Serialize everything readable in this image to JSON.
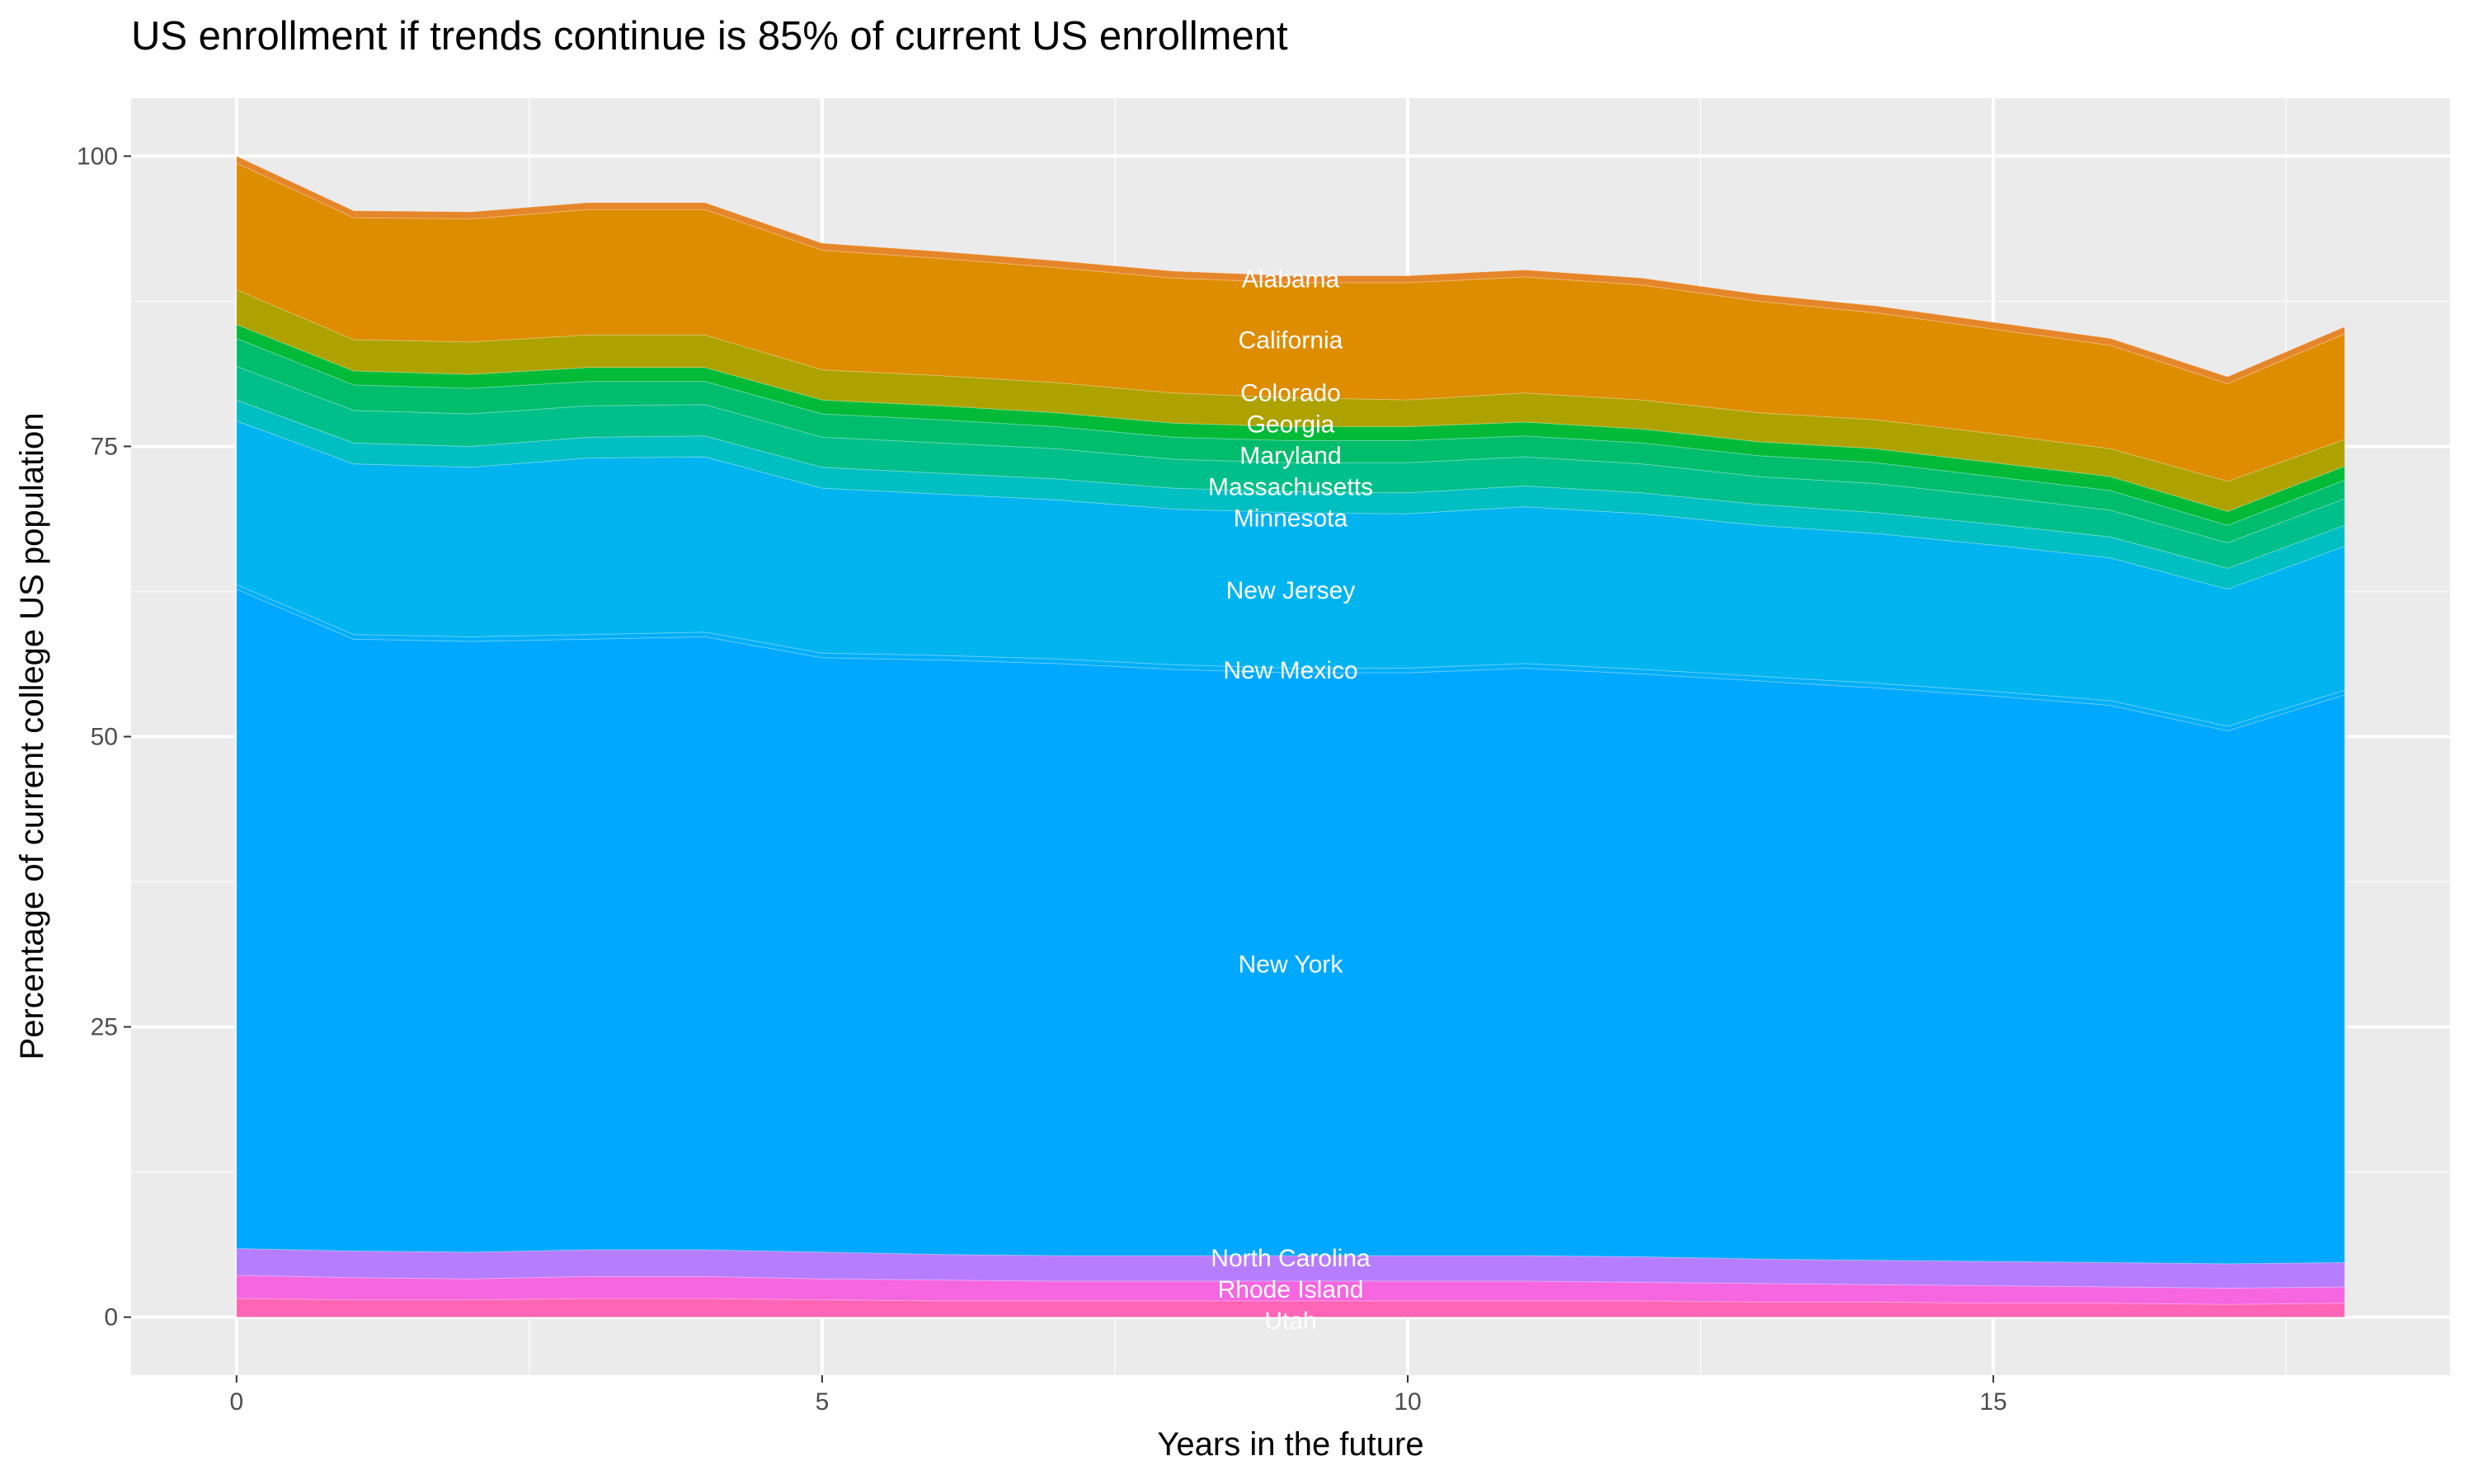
{
  "chart_data": {
    "type": "area",
    "stacked": true,
    "title": "US enrollment if trends continue is 85% of current US enrollment",
    "xlabel": "Years in the future",
    "ylabel": "Percentage of current college US population",
    "xlim": [
      -0.9,
      18.9
    ],
    "ylim": [
      -5,
      105
    ],
    "x_ticks": [
      0,
      5,
      10,
      15
    ],
    "y_ticks": [
      0,
      25,
      50,
      75,
      100
    ],
    "x_tick_labels": [
      "0",
      "5",
      "10",
      "15"
    ],
    "y_tick_labels": [
      "0",
      "25",
      "50",
      "75",
      "100"
    ],
    "grid": true,
    "legend": "none",
    "label_x": 9,
    "x": [
      0,
      1,
      2,
      3,
      4,
      5,
      6,
      7,
      8,
      9,
      10,
      11,
      12,
      13,
      14,
      15,
      16,
      17,
      18
    ],
    "series": [
      {
        "name": "Utah",
        "color": "#FF65B5",
        "values": [
          1.6,
          1.5,
          1.5,
          1.6,
          1.6,
          1.5,
          1.4,
          1.4,
          1.4,
          1.4,
          1.4,
          1.4,
          1.4,
          1.3,
          1.3,
          1.2,
          1.2,
          1.1,
          1.2
        ]
      },
      {
        "name": "Rhode Island",
        "color": "#F566E0",
        "values": [
          2.0,
          1.9,
          1.8,
          1.9,
          1.9,
          1.8,
          1.8,
          1.7,
          1.7,
          1.7,
          1.7,
          1.7,
          1.6,
          1.6,
          1.5,
          1.5,
          1.4,
          1.4,
          1.4
        ]
      },
      {
        "name": "North Carolina",
        "color": "#B67DFF",
        "values": [
          2.3,
          2.3,
          2.3,
          2.3,
          2.3,
          2.3,
          2.2,
          2.2,
          2.2,
          2.2,
          2.2,
          2.2,
          2.2,
          2.1,
          2.1,
          2.1,
          2.1,
          2.1,
          2.1
        ]
      },
      {
        "name": "New York",
        "color": "#00A9FF",
        "values": [
          56.8,
          52.7,
          52.6,
          52.6,
          52.8,
          51.2,
          51.2,
          51.0,
          50.5,
          50.2,
          50.2,
          50.6,
          50.2,
          49.8,
          49.3,
          48.7,
          48.0,
          45.9,
          48.9
        ]
      },
      {
        "name": "New Mexico",
        "color": "#00AEF8",
        "values": [
          0.4,
          0.4,
          0.4,
          0.4,
          0.4,
          0.4,
          0.4,
          0.4,
          0.4,
          0.4,
          0.4,
          0.4,
          0.4,
          0.4,
          0.4,
          0.4,
          0.4,
          0.4,
          0.4
        ]
      },
      {
        "name": "New Jersey",
        "color": "#00B4F0",
        "values": [
          14.1,
          14.7,
          14.6,
          15.2,
          15.1,
          14.2,
          13.9,
          13.7,
          13.4,
          13.4,
          13.3,
          13.5,
          13.4,
          13.0,
          12.9,
          12.6,
          12.3,
          11.8,
          12.4
        ]
      },
      {
        "name": "Minnesota",
        "color": "#00BFC2",
        "values": [
          1.8,
          1.8,
          1.8,
          1.8,
          1.8,
          1.8,
          1.8,
          1.8,
          1.8,
          1.8,
          1.8,
          1.8,
          1.8,
          1.8,
          1.8,
          1.8,
          1.8,
          1.8,
          1.8
        ]
      },
      {
        "name": "Massachusetts",
        "color": "#00BF8A",
        "values": [
          2.9,
          2.8,
          2.8,
          2.7,
          2.7,
          2.6,
          2.6,
          2.6,
          2.5,
          2.5,
          2.6,
          2.5,
          2.5,
          2.4,
          2.5,
          2.4,
          2.3,
          2.2,
          2.3
        ]
      },
      {
        "name": "Maryland",
        "color": "#00BD6E",
        "values": [
          2.4,
          2.2,
          2.2,
          2.1,
          2.0,
          2.0,
          2.0,
          1.9,
          1.9,
          1.9,
          1.9,
          1.8,
          1.8,
          1.8,
          1.8,
          1.7,
          1.7,
          1.5,
          1.6
        ]
      },
      {
        "name": "Georgia",
        "color": "#00BA38",
        "values": [
          1.2,
          1.2,
          1.2,
          1.2,
          1.2,
          1.2,
          1.2,
          1.2,
          1.2,
          1.2,
          1.2,
          1.2,
          1.2,
          1.2,
          1.2,
          1.2,
          1.2,
          1.2,
          1.2
        ]
      },
      {
        "name": "Colorado",
        "color": "#AEA200",
        "values": [
          3.0,
          2.7,
          2.8,
          2.8,
          2.8,
          2.6,
          2.6,
          2.6,
          2.6,
          2.5,
          2.3,
          2.5,
          2.5,
          2.5,
          2.5,
          2.5,
          2.4,
          2.6,
          2.3
        ]
      },
      {
        "name": "California",
        "color": "#DE8C00",
        "values": [
          10.9,
          10.5,
          10.6,
          10.8,
          10.8,
          10.3,
          10.1,
          9.9,
          9.9,
          9.9,
          10.1,
          10.0,
          9.9,
          9.6,
          9.2,
          9.0,
          8.9,
          8.4,
          9.1
        ]
      },
      {
        "name": "Alabama",
        "color": "#E6862A",
        "values": [
          0.6,
          0.6,
          0.6,
          0.6,
          0.6,
          0.6,
          0.6,
          0.6,
          0.6,
          0.6,
          0.6,
          0.6,
          0.6,
          0.6,
          0.6,
          0.6,
          0.6,
          0.6,
          0.6
        ]
      }
    ]
  }
}
